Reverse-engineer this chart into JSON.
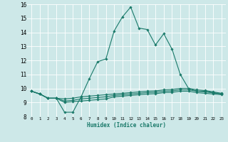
{
  "xlabel": "Humidex (Indice chaleur)",
  "xlim": [
    -0.5,
    23.5
  ],
  "ylim": [
    8,
    16
  ],
  "yticks": [
    8,
    9,
    10,
    11,
    12,
    13,
    14,
    15,
    16
  ],
  "xticks": [
    0,
    1,
    2,
    3,
    4,
    5,
    6,
    7,
    8,
    9,
    10,
    11,
    12,
    13,
    14,
    15,
    16,
    17,
    18,
    19,
    20,
    21,
    22,
    23
  ],
  "bg_color": "#cde8e8",
  "line_color": "#1a7a6a",
  "grid_color": "#ffffff",
  "series": [
    [
      9.8,
      9.6,
      9.3,
      9.3,
      8.3,
      8.3,
      9.4,
      10.7,
      11.9,
      12.1,
      14.1,
      15.1,
      15.8,
      14.3,
      14.2,
      13.1,
      13.9,
      12.8,
      11.0,
      10.0,
      9.8,
      9.8,
      9.7,
      9.6
    ],
    [
      9.8,
      9.6,
      9.3,
      9.3,
      9.25,
      9.3,
      9.4,
      9.45,
      9.5,
      9.55,
      9.6,
      9.65,
      9.7,
      9.75,
      9.8,
      9.82,
      9.9,
      9.92,
      10.0,
      10.0,
      9.9,
      9.85,
      9.75,
      9.65
    ],
    [
      9.8,
      9.6,
      9.3,
      9.3,
      9.1,
      9.15,
      9.25,
      9.3,
      9.35,
      9.4,
      9.5,
      9.55,
      9.6,
      9.65,
      9.7,
      9.72,
      9.8,
      9.82,
      9.9,
      9.9,
      9.8,
      9.75,
      9.68,
      9.6
    ],
    [
      9.8,
      9.6,
      9.3,
      9.3,
      9.0,
      9.05,
      9.1,
      9.15,
      9.2,
      9.25,
      9.4,
      9.45,
      9.5,
      9.55,
      9.6,
      9.62,
      9.7,
      9.72,
      9.8,
      9.8,
      9.7,
      9.65,
      9.6,
      9.55
    ]
  ]
}
